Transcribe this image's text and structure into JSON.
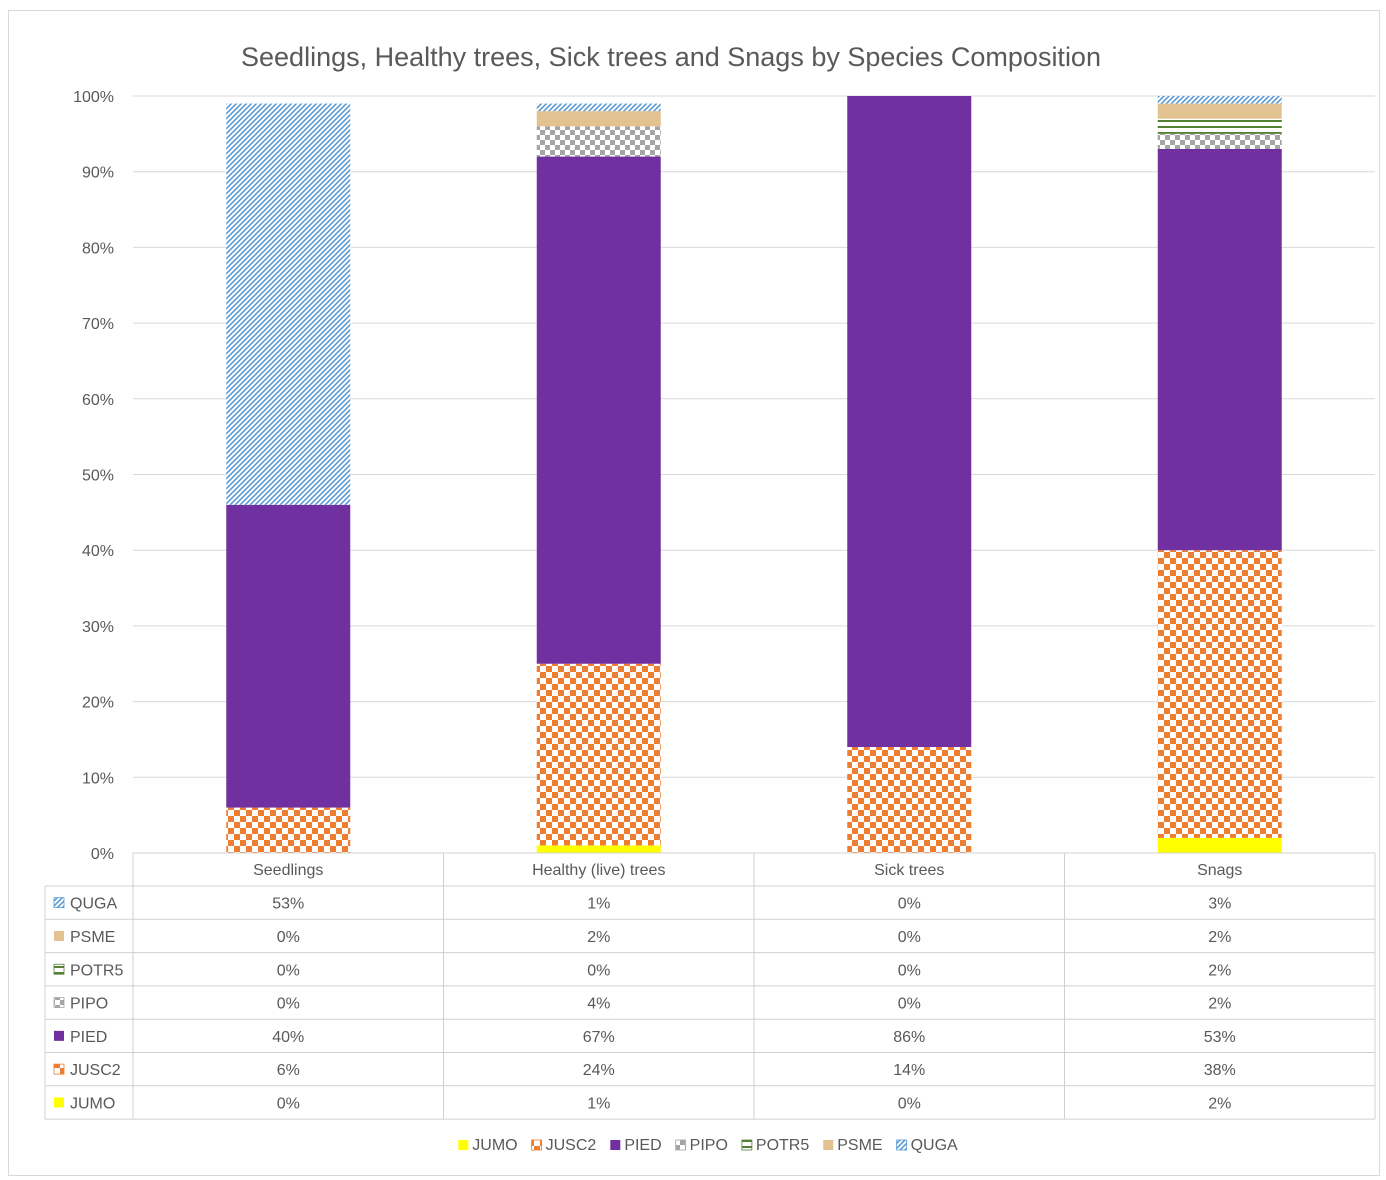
{
  "chart_data": {
    "type": "bar",
    "stacked": true,
    "percent_stacked": true,
    "title": "Seedlings, Healthy trees, Sick trees and Snags by Species Composition",
    "categories": [
      "Seedlings",
      "Healthy (live) trees",
      "Sick trees",
      "Snags"
    ],
    "y_ticks": [
      "0%",
      "10%",
      "20%",
      "30%",
      "40%",
      "50%",
      "60%",
      "70%",
      "80%",
      "90%",
      "100%"
    ],
    "ylim": [
      0,
      100
    ],
    "grid": true,
    "legend_position": "bottom",
    "series": [
      {
        "name": "JUMO",
        "values": [
          0,
          1,
          0,
          2
        ],
        "labels": [
          "0%",
          "1%",
          "0%",
          "2%"
        ],
        "color": "#ffff00",
        "pattern": "solid"
      },
      {
        "name": "JUSC2",
        "values": [
          6,
          24,
          14,
          38
        ],
        "labels": [
          "6%",
          "24%",
          "14%",
          "38%"
        ],
        "color": "#ed7d31",
        "pattern": "checker"
      },
      {
        "name": "PIED",
        "values": [
          40,
          67,
          86,
          53
        ],
        "labels": [
          "40%",
          "67%",
          "86%",
          "53%"
        ],
        "color": "#7030a0",
        "pattern": "solid"
      },
      {
        "name": "PIPO",
        "values": [
          0,
          4,
          0,
          2
        ],
        "labels": [
          "0%",
          "4%",
          "0%",
          "2%"
        ],
        "color": "#a5a5a5",
        "pattern": "checker"
      },
      {
        "name": "POTR5",
        "values": [
          0,
          0,
          0,
          2
        ],
        "labels": [
          "0%",
          "0%",
          "0%",
          "2%"
        ],
        "color": "#548235",
        "pattern": "hlines"
      },
      {
        "name": "PSME",
        "values": [
          0,
          2,
          0,
          2
        ],
        "labels": [
          "0%",
          "2%",
          "0%",
          "2%"
        ],
        "color": "#e2c290",
        "pattern": "solid"
      },
      {
        "name": "QUGA",
        "values": [
          53,
          1,
          0,
          3
        ],
        "labels": [
          "53%",
          "1%",
          "0%",
          "3%"
        ],
        "color": "#5b9bd5",
        "pattern": "diag"
      }
    ]
  }
}
